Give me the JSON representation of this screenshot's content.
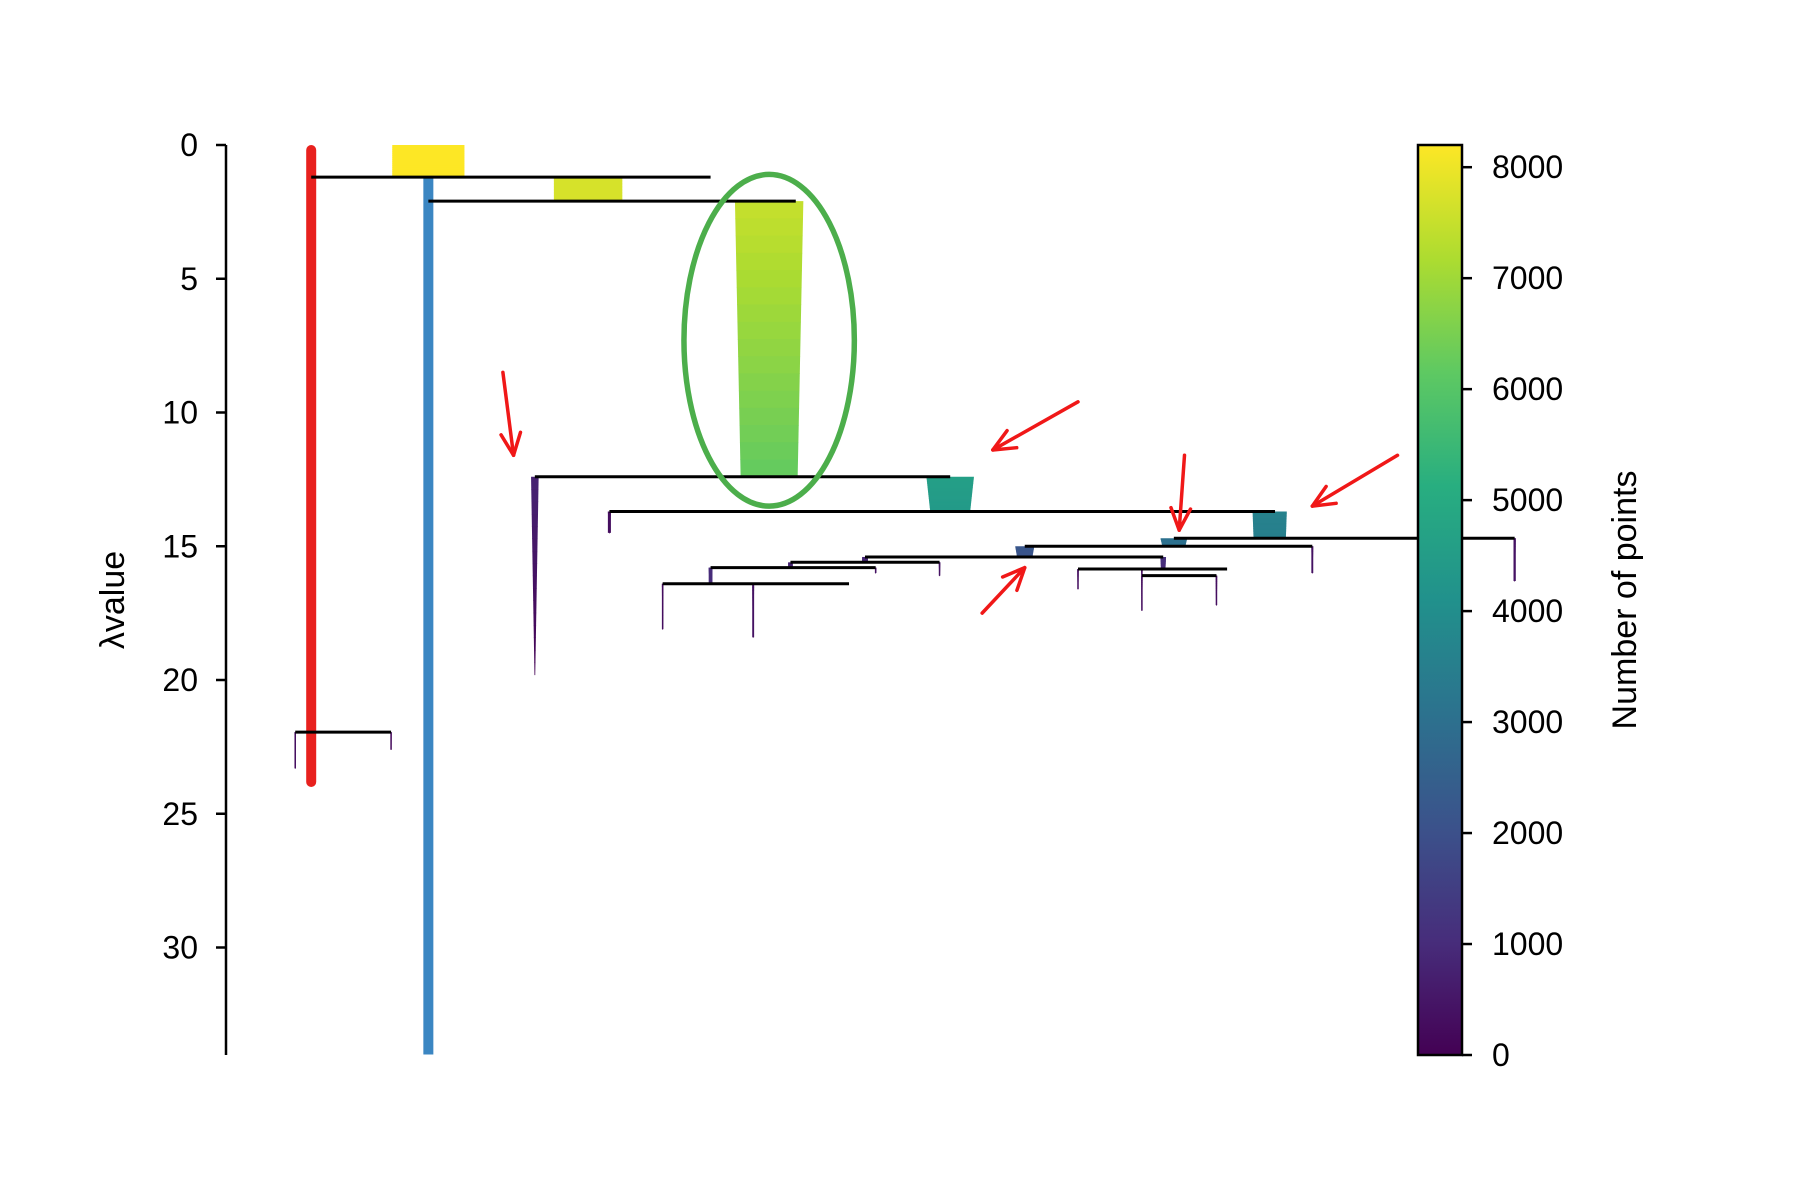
{
  "chart_data": {
    "type": "condensed-tree",
    "ylabel_symbol": "λ",
    "ylabel_text": "value",
    "y_range": [
      0,
      34
    ],
    "y_ticks": [
      0,
      5,
      10,
      15,
      20,
      25,
      30
    ],
    "y_axis_inverted": true,
    "colorbar": {
      "label": "Number of points",
      "range": [
        0,
        8200
      ],
      "ticks": [
        0,
        1000,
        2000,
        3000,
        4000,
        5000,
        6000,
        7000,
        8000
      ],
      "colormap": "viridis"
    },
    "branches": [
      {
        "id": "red-selected-cluster",
        "x": 0.08,
        "lambda_start": 0,
        "lambda_end": 24,
        "width": 0.5,
        "color": "#e8211e"
      },
      {
        "id": "blue-selected-cluster",
        "x": 0.19,
        "lambda_start": 0,
        "lambda_end": 34,
        "width": 0.5,
        "color": "#3b86c2"
      },
      {
        "id": "root-top",
        "x": 0.19,
        "lambda_start": 0,
        "lambda_end": 1.2,
        "n_start": 8200,
        "n_end": 8200,
        "w_start": 1.9,
        "w_end": 1.9
      },
      {
        "id": "branch-a",
        "x": 0.34,
        "lambda_start": 1.2,
        "lambda_end": 2.1,
        "n_start": 7700,
        "n_end": 7700,
        "w_start": 1.8,
        "w_end": 1.8
      },
      {
        "id": "circled-main-branch",
        "x": 0.51,
        "lambda_start": 2.1,
        "lambda_end": 12.4,
        "n_start": 7500,
        "n_end": 6200,
        "w_start": 1.8,
        "w_end": 1.5
      },
      {
        "id": "branch-b",
        "x": 0.29,
        "lambda_start": 12.4,
        "lambda_end": 19.8,
        "n_start": 800,
        "n_end": 0,
        "w_start": 0.2,
        "w_end": 0.02
      },
      {
        "id": "branch-c",
        "x": 0.68,
        "lambda_start": 12.4,
        "lambda_end": 13.7,
        "n_start": 4600,
        "n_end": 4400,
        "w_start": 1.25,
        "w_end": 1.05
      },
      {
        "id": "branch-d",
        "x": 0.36,
        "lambda_start": 13.7,
        "lambda_end": 14.5,
        "n_start": 300,
        "n_end": 0,
        "w_start": 0.08,
        "w_end": 0.02
      },
      {
        "id": "branch-e",
        "x": 0.98,
        "lambda_start": 13.7,
        "lambda_end": 14.7,
        "n_start": 3600,
        "n_end": 3500,
        "w_start": 0.9,
        "w_end": 0.85
      },
      {
        "id": "branch-f",
        "x": 0.89,
        "lambda_start": 14.7,
        "lambda_end": 15.0,
        "n_start": 3000,
        "n_end": 3000,
        "w_start": 0.7,
        "w_end": 0.6
      },
      {
        "id": "branch-g",
        "x": 1.21,
        "lambda_start": 14.7,
        "lambda_end": 16.3,
        "n_start": 400,
        "n_end": 0,
        "w_start": 0.06,
        "w_end": 0.02
      },
      {
        "id": "branch-h",
        "x": 0.75,
        "lambda_start": 15.0,
        "lambda_end": 15.4,
        "n_start": 2200,
        "n_end": 2100,
        "w_start": 0.5,
        "w_end": 0.4
      },
      {
        "id": "branch-i",
        "x": 1.02,
        "lambda_start": 15.0,
        "lambda_end": 16.0,
        "n_start": 400,
        "n_end": 0,
        "w_start": 0.05,
        "w_end": 0.02
      },
      {
        "id": "branch-j",
        "x": 0.6,
        "lambda_start": 15.4,
        "lambda_end": 15.6,
        "n_start": 900,
        "n_end": 900,
        "w_start": 0.15,
        "w_end": 0.15
      },
      {
        "id": "branch-k",
        "x": 0.88,
        "lambda_start": 15.4,
        "lambda_end": 15.8,
        "n_start": 1100,
        "n_end": 1000,
        "w_start": 0.15,
        "w_end": 0.12
      },
      {
        "id": "branch-l",
        "x": 0.53,
        "lambda_start": 15.6,
        "lambda_end": 15.8,
        "n_start": 800,
        "n_end": 800,
        "w_start": 0.12,
        "w_end": 0.12
      },
      {
        "id": "branch-m",
        "x": 0.67,
        "lambda_start": 15.6,
        "lambda_end": 16.1,
        "n_start": 400,
        "n_end": 0,
        "w_start": 0.04,
        "w_end": 0.02
      },
      {
        "id": "branch-n",
        "x": 0.455,
        "lambda_start": 15.8,
        "lambda_end": 16.4,
        "n_start": 1000,
        "n_end": 900,
        "w_start": 0.1,
        "w_end": 0.06
      },
      {
        "id": "branch-o",
        "x": 0.61,
        "lambda_start": 15.8,
        "lambda_end": 16.0,
        "n_start": 400,
        "n_end": 0,
        "w_start": 0.04,
        "w_end": 0.02
      },
      {
        "id": "branch-p",
        "x": 0.8,
        "lambda_start": 15.85,
        "lambda_end": 16.6,
        "n_start": 300,
        "n_end": 0,
        "w_start": 0.04,
        "w_end": 0.02
      },
      {
        "id": "branch-q",
        "x": 0.86,
        "lambda_start": 15.85,
        "lambda_end": 16.1,
        "n_start": 300,
        "n_end": 0,
        "w_start": 0.04,
        "w_end": 0.02
      },
      {
        "id": "branch-r",
        "x": 0.86,
        "lambda_start": 16.1,
        "lambda_end": 17.4,
        "n_start": 300,
        "n_end": 0,
        "w_start": 0.04,
        "w_end": 0.02
      },
      {
        "id": "branch-s",
        "x": 0.93,
        "lambda_start": 16.1,
        "lambda_end": 17.2,
        "n_start": 300,
        "n_end": 0,
        "w_start": 0.04,
        "w_end": 0.02
      },
      {
        "id": "branch-t",
        "x": 0.41,
        "lambda_start": 16.4,
        "lambda_end": 18.1,
        "n_start": 300,
        "n_end": 0,
        "w_start": 0.04,
        "w_end": 0.02
      },
      {
        "id": "branch-u",
        "x": 0.495,
        "lambda_start": 16.4,
        "lambda_end": 18.4,
        "n_start": 400,
        "n_end": 0,
        "w_start": 0.05,
        "w_end": 0.02
      },
      {
        "id": "branch-v",
        "x": 0.065,
        "lambda_start": 21.95,
        "lambda_end": 23.3,
        "n_start": 300,
        "n_end": 0,
        "w_start": 0.04,
        "w_end": 0.02
      },
      {
        "id": "branch-w",
        "x": 0.155,
        "lambda_start": 21.95,
        "lambda_end": 22.6,
        "n_start": 200,
        "n_end": 0,
        "w_start": 0.03,
        "w_end": 0.02
      }
    ],
    "splits": [
      {
        "lambda": 1.2,
        "x_start": 0.08,
        "x_end": 0.455
      },
      {
        "lambda": 2.1,
        "x_start": 0.19,
        "x_end": 0.535
      },
      {
        "lambda": 12.4,
        "x_start": 0.29,
        "x_end": 0.68
      },
      {
        "lambda": 13.7,
        "x_start": 0.36,
        "x_end": 0.985
      },
      {
        "lambda": 14.7,
        "x_start": 0.89,
        "x_end": 1.21
      },
      {
        "lambda": 15.0,
        "x_start": 0.75,
        "x_end": 1.02
      },
      {
        "lambda": 15.4,
        "x_start": 0.6,
        "x_end": 0.88
      },
      {
        "lambda": 15.6,
        "x_start": 0.53,
        "x_end": 0.67
      },
      {
        "lambda": 15.8,
        "x_start": 0.455,
        "x_end": 0.61
      },
      {
        "lambda": 15.85,
        "x_start": 0.8,
        "x_end": 0.94
      },
      {
        "lambda": 16.1,
        "x_start": 0.86,
        "x_end": 0.93
      },
      {
        "lambda": 16.4,
        "x_start": 0.41,
        "x_end": 0.585
      },
      {
        "lambda": 21.95,
        "x_start": 0.065,
        "x_end": 0.155
      }
    ],
    "annotations": {
      "ellipse": {
        "id": "circled-main-branch",
        "color": "#4cae4b",
        "center_x": 0.51,
        "center_lambda": 7.3,
        "radius_x": 0.08,
        "radius_lambda": 6.2
      },
      "arrow_color": "#f01818",
      "arrows": [
        {
          "id": "arrow-branch-b",
          "from_x": 0.26,
          "from_lambda": 8.5,
          "to_x": 0.27,
          "to_lambda": 11.6
        },
        {
          "id": "arrow-branch-c",
          "from_x": 0.8,
          "from_lambda": 9.6,
          "to_x": 0.72,
          "to_lambda": 11.4
        },
        {
          "id": "arrow-branch-f",
          "from_x": 0.9,
          "from_lambda": 11.6,
          "to_x": 0.895,
          "to_lambda": 14.4
        },
        {
          "id": "arrow-branch-e",
          "from_x": 1.1,
          "from_lambda": 11.6,
          "to_x": 1.02,
          "to_lambda": 13.5
        },
        {
          "id": "arrow-branch-k",
          "from_x": 0.71,
          "from_lambda": 17.5,
          "to_x": 0.75,
          "to_lambda": 15.8
        }
      ]
    }
  }
}
